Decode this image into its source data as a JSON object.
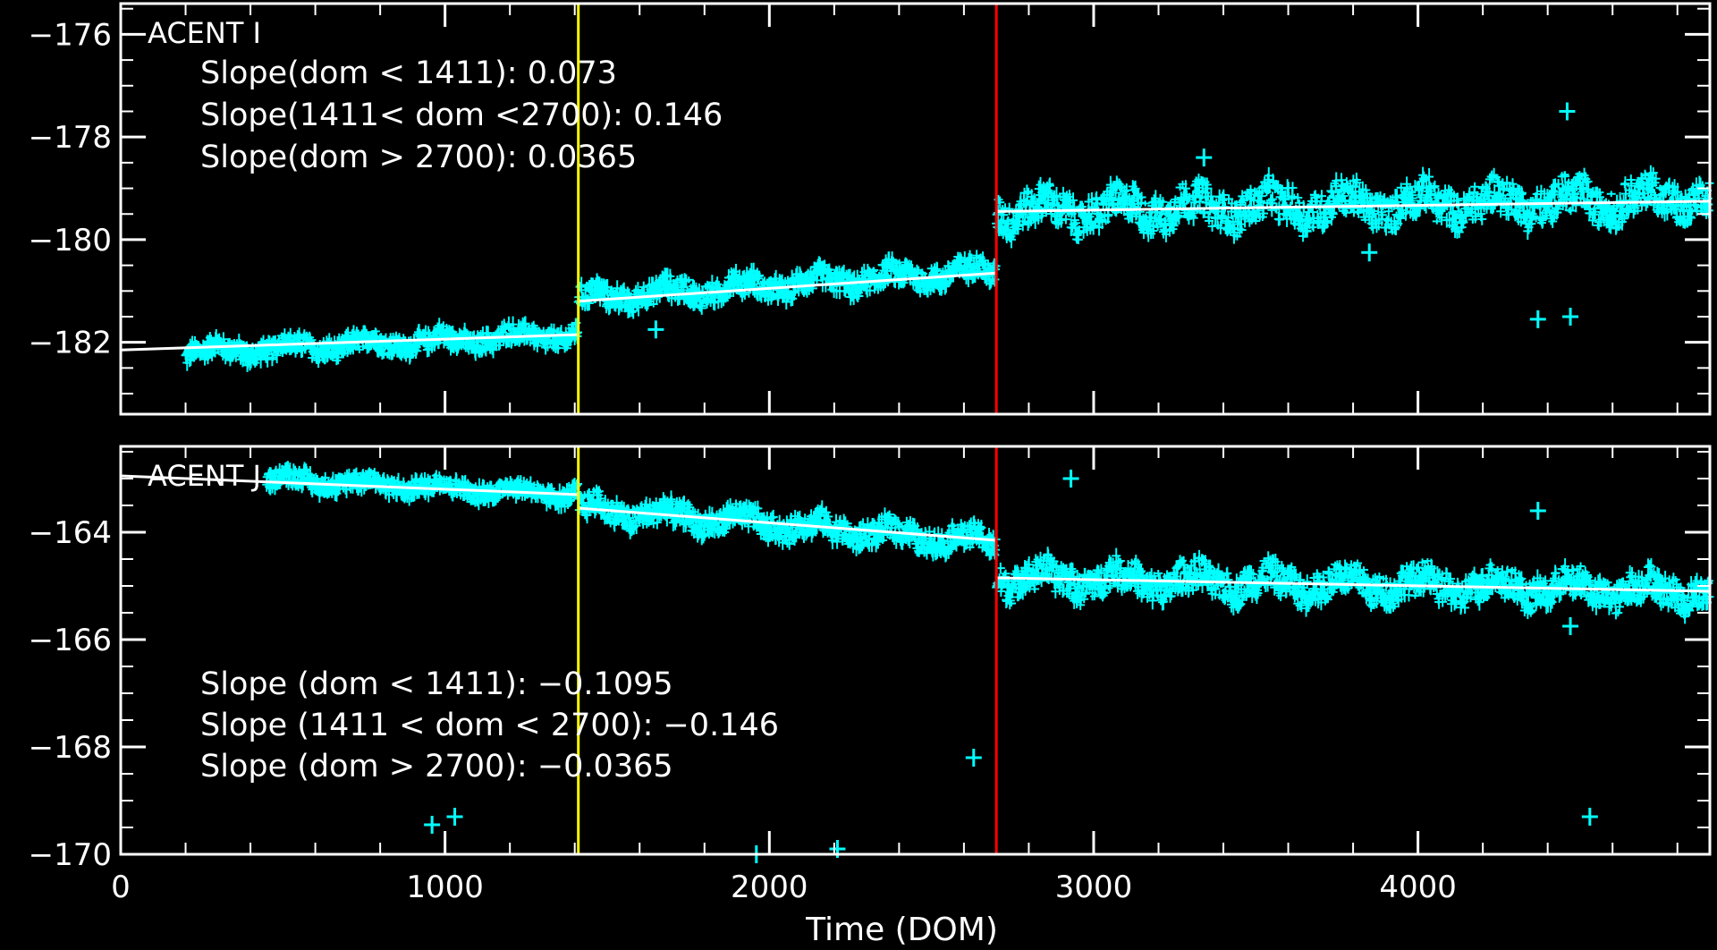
{
  "colors": {
    "background": "#000000",
    "axes": "#ffffff",
    "points": "#00ffff",
    "fit_line": "#ffffff",
    "marker_1411": "#ffff00",
    "marker_2700": "#ff0000"
  },
  "chart_data": [
    {
      "type": "scatter",
      "panel_label": "ACENT I",
      "xlabel": "",
      "ylabel": "",
      "xlim": [
        0,
        4900
      ],
      "ylim": [
        -183.4,
        -175.4
      ],
      "yticks": [
        -176,
        -178,
        -180,
        -182
      ],
      "ytick_labels": [
        "−176",
        "−178",
        "−180",
        "−182"
      ],
      "vlines": [
        1411,
        2700
      ],
      "annotations": [
        "Slope(dom < 1411): 0.073",
        "Slope(1411< dom <2700): 0.146",
        "Slope(dom > 2700): 0.0365"
      ],
      "fit_segments": [
        {
          "x": [
            0,
            1411
          ],
          "y": [
            -182.15,
            -181.85
          ]
        },
        {
          "x": [
            1411,
            2700
          ],
          "y": [
            -181.2,
            -180.65
          ]
        },
        {
          "x": [
            2700,
            4900
          ],
          "y": [
            -179.45,
            -179.25
          ]
        }
      ],
      "band_segments": [
        {
          "x_start": 200,
          "x_end": 1411,
          "y_start": -182.2,
          "y_end": -181.85,
          "spread": 0.3
        },
        {
          "x_start": 1411,
          "x_end": 2700,
          "y_start": -181.15,
          "y_end": -180.6,
          "spread": 0.35
        },
        {
          "x_start": 2700,
          "x_end": 4900,
          "y_start": -179.45,
          "y_end": -179.2,
          "spread": 0.55
        }
      ],
      "outliers": [
        {
          "x": 4460,
          "y": -177.5
        },
        {
          "x": 3340,
          "y": -178.4
        },
        {
          "x": 4370,
          "y": -181.55
        },
        {
          "x": 4470,
          "y": -181.5
        },
        {
          "x": 1650,
          "y": -181.75
        },
        {
          "x": 3850,
          "y": -180.25
        }
      ]
    },
    {
      "type": "scatter",
      "panel_label": "ACENT J",
      "xlabel": "Time (DOM)",
      "ylabel": "",
      "xlim": [
        0,
        4900
      ],
      "ylim": [
        -170,
        -162.4
      ],
      "xticks": [
        0,
        1000,
        2000,
        3000,
        4000
      ],
      "xtick_labels": [
        "0",
        "1000",
        "2000",
        "3000",
        "4000"
      ],
      "yticks": [
        -164,
        -166,
        -168,
        -170
      ],
      "ytick_labels": [
        "−164",
        "−166",
        "−168",
        "−170"
      ],
      "vlines": [
        1411,
        2700
      ],
      "annotations": [
        "Slope (dom < 1411): −0.1095",
        "Slope (1411 < dom < 2700): −0.146",
        "Slope (dom > 2700): −0.0365"
      ],
      "fit_segments": [
        {
          "x": [
            0,
            1411
          ],
          "y": [
            -162.95,
            -163.3
          ]
        },
        {
          "x": [
            1411,
            2700
          ],
          "y": [
            -163.55,
            -164.15
          ]
        },
        {
          "x": [
            2700,
            4900
          ],
          "y": [
            -164.85,
            -165.1
          ]
        }
      ],
      "band_segments": [
        {
          "x_start": 450,
          "x_end": 1411,
          "y_start": -163.0,
          "y_end": -163.3,
          "spread": 0.25
        },
        {
          "x_start": 1411,
          "x_end": 2700,
          "y_start": -163.55,
          "y_end": -164.2,
          "spread": 0.35
        },
        {
          "x_start": 2700,
          "x_end": 4900,
          "y_start": -164.85,
          "y_end": -165.1,
          "spread": 0.45
        }
      ],
      "outliers": [
        {
          "x": 2930,
          "y": -163.0
        },
        {
          "x": 2630,
          "y": -168.2
        },
        {
          "x": 2210,
          "y": -169.9
        },
        {
          "x": 1960,
          "y": -170.0
        },
        {
          "x": 960,
          "y": -169.45
        },
        {
          "x": 1030,
          "y": -169.3
        },
        {
          "x": 4530,
          "y": -169.3
        },
        {
          "x": 4470,
          "y": -165.75
        },
        {
          "x": 4370,
          "y": -163.6
        }
      ]
    }
  ]
}
